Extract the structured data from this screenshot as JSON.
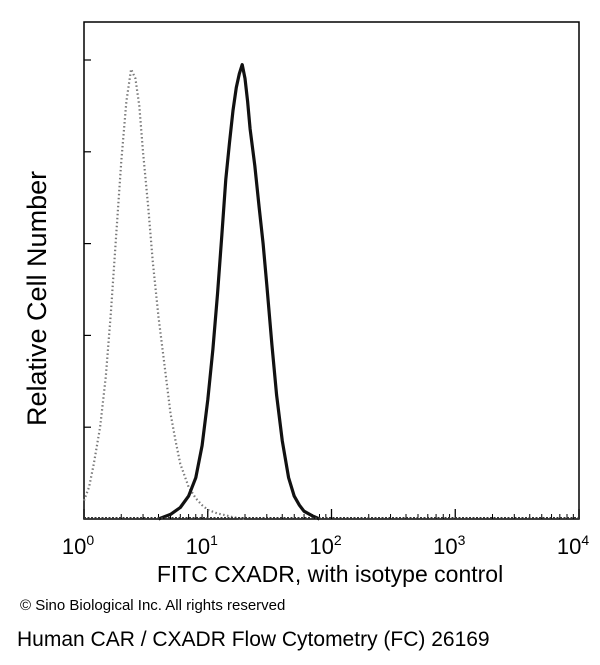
{
  "chart_data": {
    "type": "line",
    "xlabel": "FITC CXADR, with isotype control",
    "ylabel": "Relative Cell Number",
    "x_scale": "log",
    "xlim": [
      1,
      10000
    ],
    "ylim": [
      0,
      1
    ],
    "x_ticks": [
      {
        "value": 1,
        "base": "10",
        "exp": "0"
      },
      {
        "value": 10,
        "base": "10",
        "exp": "1"
      },
      {
        "value": 100,
        "base": "10",
        "exp": "2"
      },
      {
        "value": 1000,
        "base": "10",
        "exp": "3"
      },
      {
        "value": 10000,
        "base": "10",
        "exp": "4"
      }
    ],
    "y_ticks_count": 5,
    "grid": false,
    "series": [
      {
        "style": "dotted",
        "color": "#7a7a7a",
        "x": [
          1,
          1.1,
          1.2,
          1.35,
          1.5,
          1.65,
          1.8,
          2.0,
          2.2,
          2.4,
          2.6,
          2.8,
          3.0,
          3.3,
          3.6,
          4.0,
          4.5,
          5.0,
          5.5,
          6.0,
          7.0,
          8.0,
          9.0,
          10,
          12,
          14,
          16,
          20
        ],
        "y": [
          0.04,
          0.07,
          0.12,
          0.2,
          0.31,
          0.45,
          0.6,
          0.78,
          0.91,
          0.98,
          0.96,
          0.9,
          0.8,
          0.68,
          0.56,
          0.44,
          0.33,
          0.23,
          0.17,
          0.12,
          0.07,
          0.045,
          0.03,
          0.02,
          0.012,
          0.008,
          0.004,
          0.0
        ]
      },
      {
        "style": "solid",
        "color": "#111111",
        "x": [
          4,
          5,
          6,
          7,
          8,
          9,
          10,
          11,
          12,
          13,
          14,
          15,
          16,
          17,
          18,
          19,
          20,
          21,
          22,
          24,
          26,
          28,
          30,
          33,
          36,
          40,
          45,
          50,
          55,
          60,
          70,
          80
        ],
        "y": [
          0.0,
          0.01,
          0.025,
          0.05,
          0.09,
          0.16,
          0.26,
          0.37,
          0.49,
          0.62,
          0.74,
          0.82,
          0.89,
          0.94,
          0.97,
          0.99,
          0.96,
          0.91,
          0.85,
          0.77,
          0.68,
          0.6,
          0.51,
          0.38,
          0.27,
          0.17,
          0.09,
          0.05,
          0.03,
          0.017,
          0.007,
          0.0
        ]
      }
    ]
  },
  "texts": {
    "copyright": "© Sino Biological Inc. All rights reserved",
    "caption": "Human CAR / CXADR Flow Cytometry (FC) 26169"
  }
}
